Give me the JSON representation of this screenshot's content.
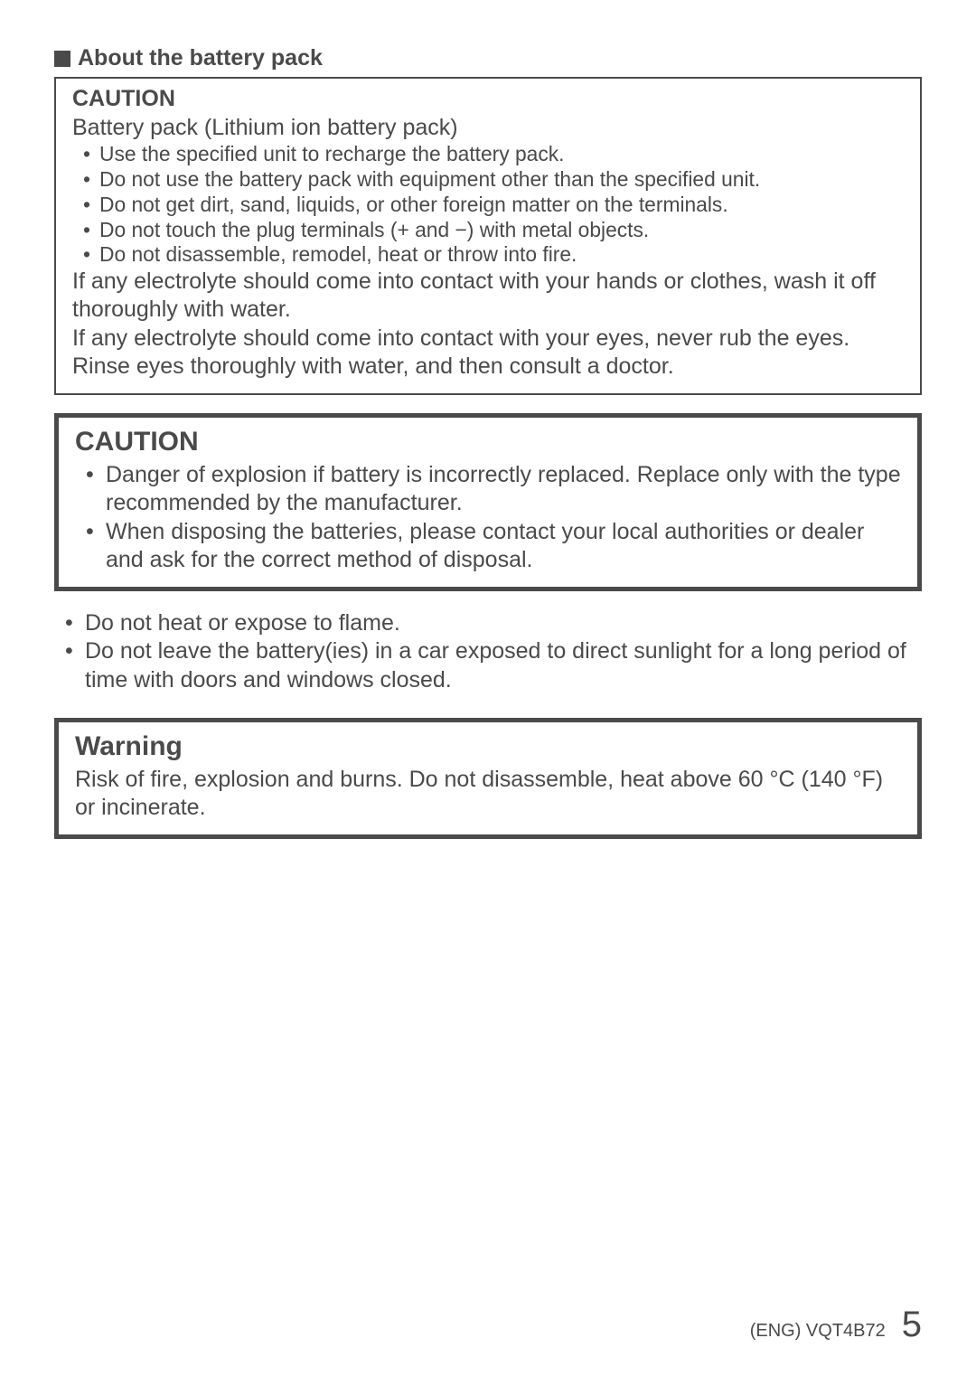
{
  "heading": "About the battery pack",
  "box1": {
    "title": "CAUTION",
    "subtitle": "Battery pack (Lithium ion battery pack)",
    "bullets": [
      "Use the specified unit to recharge the battery pack.",
      "Do not use the battery pack with equipment other than the specified unit.",
      "Do not get dirt, sand, liquids, or other foreign matter on the terminals.",
      "Do not touch the plug terminals (+ and −) with metal objects.",
      "Do not disassemble, remodel, heat or throw into fire."
    ],
    "para1": "If any electrolyte should come into contact with your hands or clothes, wash it off thoroughly with water.",
    "para2": "If any electrolyte should come into contact with your eyes, never rub the eyes. Rinse eyes thoroughly with water, and then consult a doctor."
  },
  "box2": {
    "title": "CAUTION",
    "bullets": [
      "Danger of explosion if battery is incorrectly replaced. Replace only with the type recommended by the manufacturer.",
      "When disposing the batteries, please contact your local authorities or dealer and ask for the correct method of disposal."
    ]
  },
  "free_bullets": [
    "Do not heat or expose to flame.",
    "Do not leave the battery(ies) in a car exposed to direct sunlight for a long period of time with doors and windows closed."
  ],
  "box3": {
    "title": "Warning",
    "para": "Risk of fire, explosion and burns. Do not disassemble, heat above 60 °C (140 °F) or incinerate."
  },
  "footer": {
    "code": "(ENG) VQT4B72",
    "page": "5"
  }
}
